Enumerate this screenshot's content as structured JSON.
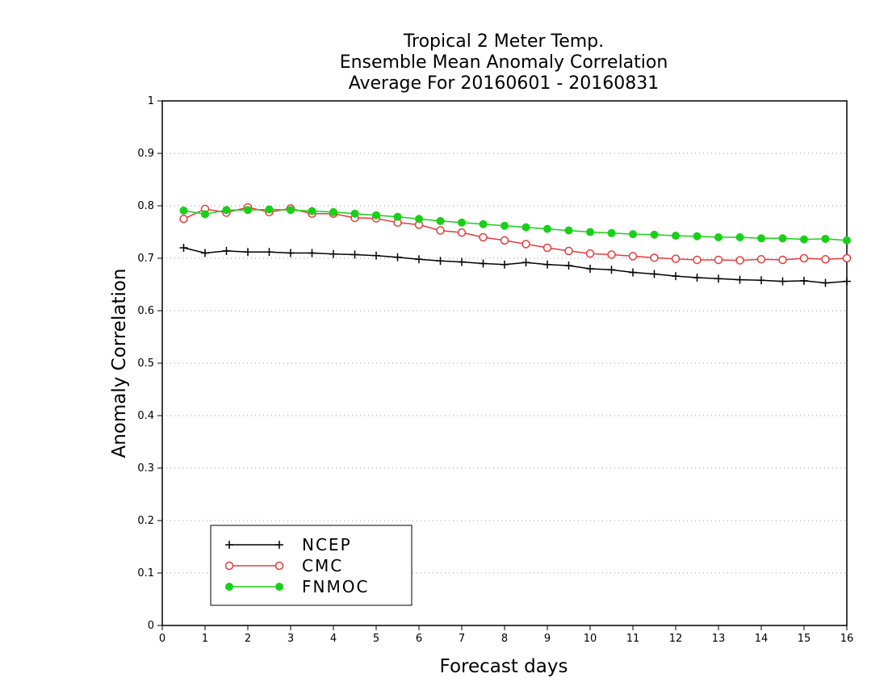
{
  "chart_data": {
    "type": "line",
    "title": [
      "Tropical 2 Meter Temp.",
      "Ensemble Mean Anomaly Correlation",
      "Average For 20160601 - 20160831"
    ],
    "xlabel": "Forecast days",
    "ylabel": "Anomaly Correlation",
    "xlim": [
      0,
      16
    ],
    "ylim": [
      0,
      1
    ],
    "x_ticks": [
      "0",
      "1",
      "2",
      "3",
      "4",
      "5",
      "6",
      "7",
      "8",
      "9",
      "10",
      "11",
      "12",
      "13",
      "14",
      "15",
      "16"
    ],
    "y_ticks": [
      "0",
      "0.1",
      "0.2",
      "0.3",
      "0.4",
      "0.5",
      "0.6",
      "0.7",
      "0.8",
      "0.9",
      "1"
    ],
    "grid": "horizontal-dotted",
    "legend_position": "bottom-left",
    "x": [
      0.5,
      1,
      1.5,
      2,
      2.5,
      3,
      3.5,
      4,
      4.5,
      5,
      5.5,
      6,
      6.5,
      7,
      7.5,
      8,
      8.5,
      9,
      9.5,
      10,
      10.5,
      11,
      11.5,
      12,
      12.5,
      13,
      13.5,
      14,
      14.5,
      15,
      15.5,
      16
    ],
    "series": [
      {
        "name": "NCEP",
        "color": "#000000",
        "marker": "plus",
        "values": [
          0.72,
          0.71,
          0.714,
          0.712,
          0.712,
          0.71,
          0.71,
          0.708,
          0.707,
          0.705,
          0.702,
          0.698,
          0.695,
          0.693,
          0.69,
          0.688,
          0.692,
          0.688,
          0.686,
          0.68,
          0.678,
          0.673,
          0.67,
          0.666,
          0.663,
          0.661,
          0.659,
          0.658,
          0.656,
          0.657,
          0.653,
          0.656
        ]
      },
      {
        "name": "CMC",
        "color": "#e83a3a",
        "marker": "open-circle",
        "values": [
          0.775,
          0.794,
          0.787,
          0.797,
          0.788,
          0.795,
          0.785,
          0.785,
          0.777,
          0.776,
          0.768,
          0.764,
          0.753,
          0.749,
          0.74,
          0.734,
          0.727,
          0.72,
          0.714,
          0.709,
          0.707,
          0.704,
          0.701,
          0.699,
          0.697,
          0.697,
          0.696,
          0.698,
          0.697,
          0.7,
          0.698,
          0.7
        ]
      },
      {
        "name": "FNMOC",
        "color": "#18d018",
        "marker": "filled-circle",
        "values": [
          0.791,
          0.784,
          0.792,
          0.792,
          0.793,
          0.792,
          0.79,
          0.788,
          0.785,
          0.782,
          0.779,
          0.775,
          0.771,
          0.768,
          0.765,
          0.762,
          0.759,
          0.756,
          0.753,
          0.75,
          0.748,
          0.746,
          0.745,
          0.743,
          0.742,
          0.74,
          0.74,
          0.738,
          0.738,
          0.736,
          0.737,
          0.734
        ]
      }
    ]
  }
}
